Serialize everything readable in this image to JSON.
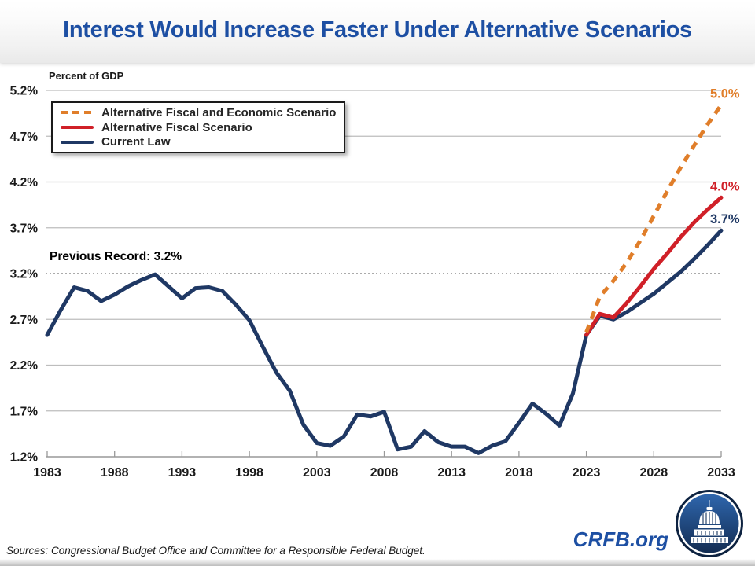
{
  "header": {
    "title": "Interest Would Increase Faster Under Alternative Scenarios"
  },
  "axis_note": "Percent of GDP",
  "annotation": {
    "previous_record": "Previous Record: 3.2%"
  },
  "theme": {
    "accent_blue": "#1d4fa3",
    "navy": "#1f3864",
    "red": "#d02028",
    "orange": "#e07e2a",
    "gridline": "#bdbdbd",
    "axis": "#999999"
  },
  "legend": [
    {
      "label": "Alternative Fiscal and Economic Scenario",
      "color": "#e07e2a",
      "style": "dashed"
    },
    {
      "label": "Alternative Fiscal Scenario",
      "color": "#d02028",
      "style": "solid"
    },
    {
      "label": "Current Law",
      "color": "#1f3864",
      "style": "solid"
    }
  ],
  "footer": {
    "sources": "Sources: Congressional Budget Office and Committee for a Responsible Federal Budget.",
    "site": "CRFB.org",
    "logo": "capitol-dome-logo"
  },
  "chart_data": {
    "type": "line",
    "title": "Interest Would Increase Faster Under Alternative Scenarios",
    "ylabel": "Percent of GDP",
    "xlabel": "",
    "grid": true,
    "legend_position": "top-left",
    "xlim": [
      1983,
      2033
    ],
    "ylim": [
      1.2,
      5.2
    ],
    "xticks": [
      1983,
      1988,
      1993,
      1998,
      2003,
      2008,
      2013,
      2018,
      2023,
      2028,
      2033
    ],
    "yticks": [
      {
        "label": "5.2%",
        "value": 5.2
      },
      {
        "label": "4.7%",
        "value": 4.7
      },
      {
        "label": "4.2%",
        "value": 4.2
      },
      {
        "label": "3.7%",
        "value": 3.7
      },
      {
        "label": "3.2%",
        "value": 3.2,
        "dotted": true
      },
      {
        "label": "2.7%",
        "value": 2.7
      },
      {
        "label": "2.2%",
        "value": 2.2
      },
      {
        "label": "1.7%",
        "value": 1.7
      },
      {
        "label": "1.2%",
        "value": 1.2,
        "axis": true
      }
    ],
    "reference_line": {
      "value": 3.2,
      "label": "Previous Record: 3.2%"
    },
    "series": [
      {
        "name": "Current Law",
        "color": "#1f3864",
        "style": "solid",
        "end_label": "3.7%",
        "x": [
          1983,
          1984,
          1985,
          1986,
          1987,
          1988,
          1989,
          1990,
          1991,
          1992,
          1993,
          1994,
          1995,
          1996,
          1997,
          1998,
          1999,
          2000,
          2001,
          2002,
          2003,
          2004,
          2005,
          2006,
          2007,
          2008,
          2009,
          2010,
          2011,
          2012,
          2013,
          2014,
          2015,
          2016,
          2017,
          2018,
          2019,
          2020,
          2021,
          2022,
          2023,
          2024,
          2025,
          2026,
          2027,
          2028,
          2029,
          2030,
          2031,
          2032,
          2033
        ],
        "y": [
          2.53,
          2.8,
          3.05,
          3.01,
          2.9,
          2.97,
          3.06,
          3.13,
          3.19,
          3.06,
          2.93,
          3.04,
          3.05,
          3.01,
          2.86,
          2.69,
          2.4,
          2.12,
          1.92,
          1.55,
          1.35,
          1.32,
          1.42,
          1.66,
          1.64,
          1.69,
          1.28,
          1.31,
          1.48,
          1.36,
          1.31,
          1.31,
          1.24,
          1.32,
          1.37,
          1.57,
          1.78,
          1.67,
          1.54,
          1.89,
          2.53,
          2.74,
          2.7,
          2.78,
          2.88,
          2.98,
          3.1,
          3.22,
          3.36,
          3.51,
          3.67
        ]
      },
      {
        "name": "Alternative Fiscal Scenario",
        "color": "#d02028",
        "style": "solid",
        "end_label": "4.0%",
        "x": [
          2023,
          2024,
          2025,
          2026,
          2027,
          2028,
          2029,
          2030,
          2031,
          2032,
          2033
        ],
        "y": [
          2.53,
          2.76,
          2.72,
          2.88,
          3.06,
          3.25,
          3.42,
          3.6,
          3.76,
          3.9,
          4.03
        ]
      },
      {
        "name": "Alternative Fiscal and Economic Scenario",
        "color": "#e07e2a",
        "style": "dashed",
        "end_label": "5.0%",
        "x": [
          2023,
          2024,
          2025,
          2026,
          2027,
          2028,
          2029,
          2030,
          2031,
          2032,
          2033
        ],
        "y": [
          2.56,
          2.95,
          3.12,
          3.32,
          3.56,
          3.83,
          4.1,
          4.36,
          4.6,
          4.83,
          5.04
        ]
      }
    ]
  }
}
